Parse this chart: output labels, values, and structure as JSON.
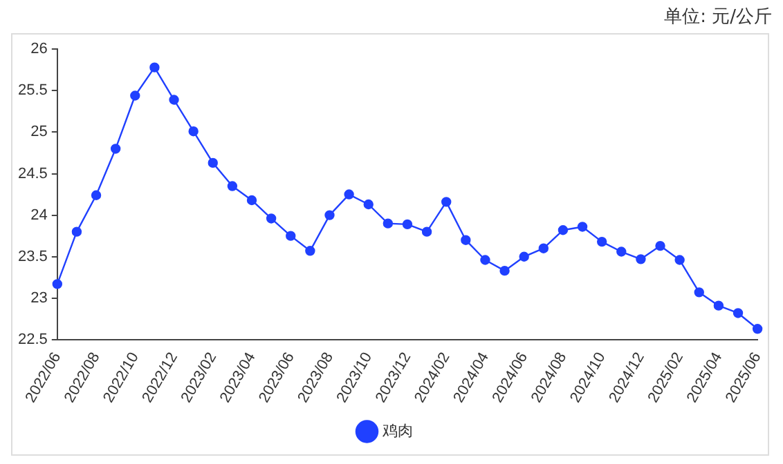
{
  "chart_data": {
    "type": "line",
    "annotations": [
      "单位: 元/公斤"
    ],
    "categories": [
      "2022/06",
      null,
      "2022/08",
      null,
      "2022/10",
      null,
      "2022/12",
      null,
      "2023/02",
      null,
      "2023/04",
      null,
      "2023/06",
      null,
      "2023/08",
      null,
      "2023/10",
      null,
      "2023/12",
      null,
      "2024/02",
      null,
      "2024/04",
      null,
      "2024/06",
      null,
      "2024/08",
      null,
      "2024/10",
      null,
      "2024/12",
      null,
      "2025/02",
      null,
      "2025/04",
      null,
      "2025/06"
    ],
    "series": [
      {
        "name": "鸡肉",
        "color": "#2040ff",
        "values": [
          23.17,
          23.8,
          24.24,
          24.8,
          25.44,
          25.78,
          25.39,
          25.01,
          24.63,
          24.35,
          24.18,
          23.96,
          23.75,
          23.57,
          24.0,
          24.25,
          24.13,
          23.9,
          23.89,
          23.8,
          24.16,
          23.7,
          23.46,
          23.33,
          23.5,
          23.6,
          23.82,
          23.86,
          23.68,
          23.56,
          23.47,
          23.63,
          23.46,
          23.07,
          22.91,
          22.82,
          22.63
        ]
      }
    ],
    "ylim": [
      22.5,
      26
    ],
    "yticks": [
      22.5,
      23,
      23.5,
      24,
      24.5,
      25,
      25.5,
      26
    ],
    "grid": false,
    "legend": "bottom",
    "marker": "circle",
    "line_style": "solid"
  }
}
